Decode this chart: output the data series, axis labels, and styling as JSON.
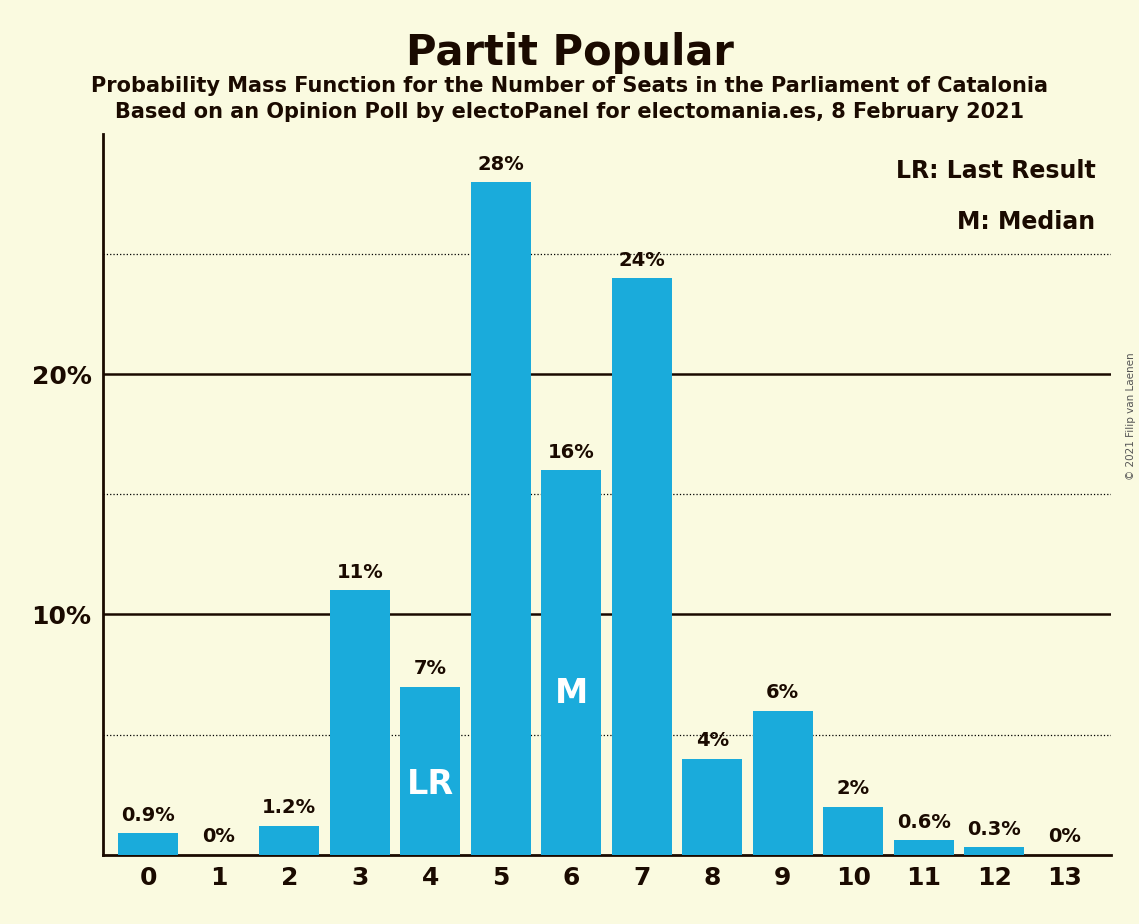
{
  "title": "Partit Popular",
  "subtitle1": "Probability Mass Function for the Number of Seats in the Parliament of Catalonia",
  "subtitle2": "Based on an Opinion Poll by electoPanel for electomania.es, 8 February 2021",
  "copyright": "© 2021 Filip van Laenen",
  "categories": [
    0,
    1,
    2,
    3,
    4,
    5,
    6,
    7,
    8,
    9,
    10,
    11,
    12,
    13
  ],
  "values": [
    0.9,
    0.0,
    1.2,
    11.0,
    7.0,
    28.0,
    16.0,
    24.0,
    4.0,
    6.0,
    2.0,
    0.6,
    0.3,
    0.0
  ],
  "labels": [
    "0.9%",
    "0%",
    "1.2%",
    "11%",
    "7%",
    "28%",
    "16%",
    "24%",
    "4%",
    "6%",
    "2%",
    "0.6%",
    "0.3%",
    "0%"
  ],
  "bar_color": "#1AABDB",
  "background_color": "#FAFAE0",
  "text_color": "#1a0a00",
  "label_inside_color": "#FFFFFF",
  "label_outside_color": "#1a0a00",
  "lr_bar": 4,
  "median_bar": 6,
  "lr_label": "LR",
  "median_label": "M",
  "legend_lr": "LR: Last Result",
  "legend_m": "M: Median",
  "ylim_max": 30,
  "dotted_lines": [
    5,
    15,
    25
  ],
  "solid_lines": [
    10,
    20
  ],
  "title_fontsize": 30,
  "subtitle_fontsize": 15,
  "axis_fontsize": 18,
  "bar_label_fontsize": 14,
  "inside_label_fontsize": 24,
  "legend_fontsize": 17
}
